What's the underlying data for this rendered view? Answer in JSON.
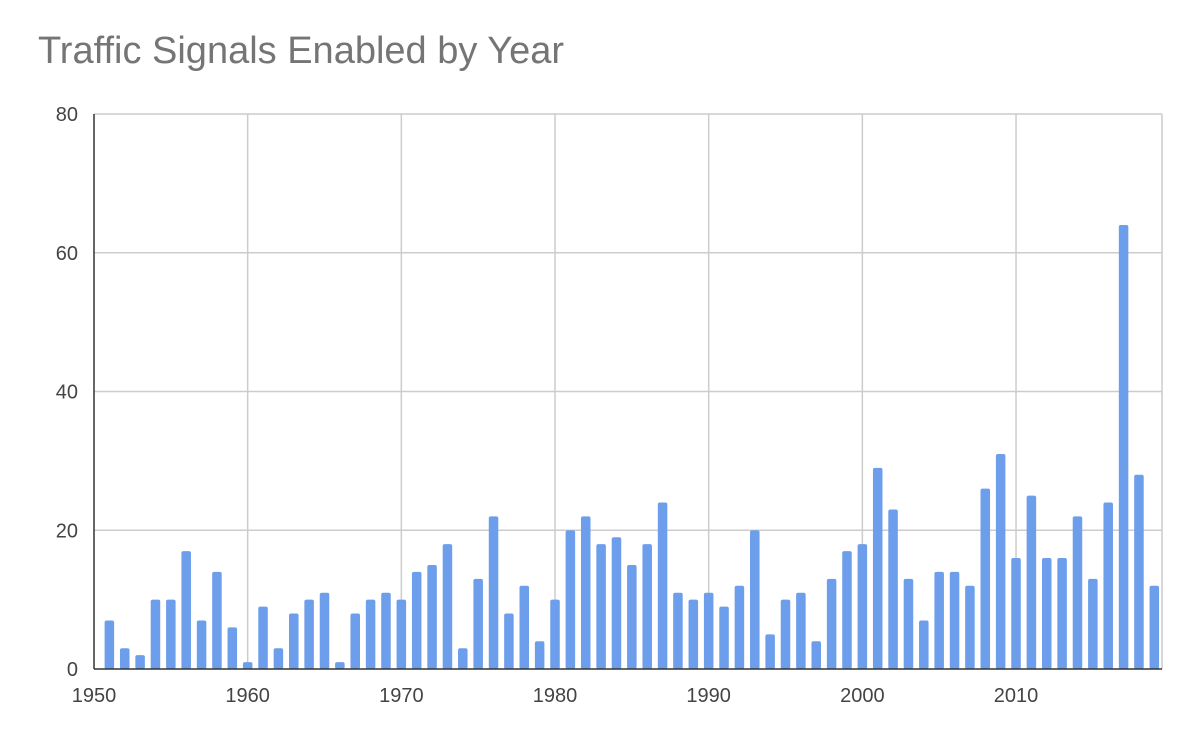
{
  "chart_data": {
    "type": "bar",
    "title": "Traffic Signals Enabled by Year",
    "xlabel": "",
    "ylabel": "",
    "xlim": [
      1950,
      2019.5
    ],
    "ylim": [
      0,
      80
    ],
    "x_ticks": [
      "1950",
      "1960",
      "1970",
      "1980",
      "1990",
      "2000",
      "2010"
    ],
    "y_ticks": [
      "0",
      "20",
      "40",
      "60",
      "80"
    ],
    "grid": true,
    "bar_color": "#6d9eeb",
    "series": [
      {
        "x": [
          1951,
          1952,
          1953,
          1954,
          1955,
          1956,
          1957,
          1958,
          1959,
          1960,
          1961,
          1962,
          1963,
          1964,
          1965,
          1966,
          1967,
          1968,
          1969,
          1970,
          1971,
          1972,
          1973,
          1974,
          1975,
          1976,
          1977,
          1978,
          1979,
          1980,
          1981,
          1982,
          1983,
          1984,
          1985,
          1986,
          1987,
          1988,
          1989,
          1990,
          1991,
          1992,
          1993,
          1994,
          1995,
          1996,
          1997,
          1998,
          1999,
          2000,
          2001,
          2002,
          2003,
          2004,
          2005,
          2006,
          2007,
          2008,
          2009,
          2010,
          2011,
          2012,
          2013,
          2014,
          2015,
          2016,
          2017,
          2018,
          2019
        ],
        "values": [
          7,
          3,
          2,
          10,
          10,
          17,
          7,
          14,
          6,
          1,
          9,
          3,
          8,
          10,
          11,
          1,
          8,
          10,
          11,
          10,
          14,
          15,
          18,
          3,
          13,
          22,
          8,
          12,
          4,
          10,
          20,
          22,
          18,
          19,
          15,
          18,
          24,
          11,
          10,
          11,
          9,
          12,
          20,
          5,
          10,
          11,
          4,
          13,
          17,
          18,
          29,
          23,
          13,
          7,
          14,
          14,
          12,
          26,
          31,
          16,
          25,
          16,
          16,
          22,
          13,
          24,
          64,
          28,
          12
        ]
      }
    ]
  }
}
